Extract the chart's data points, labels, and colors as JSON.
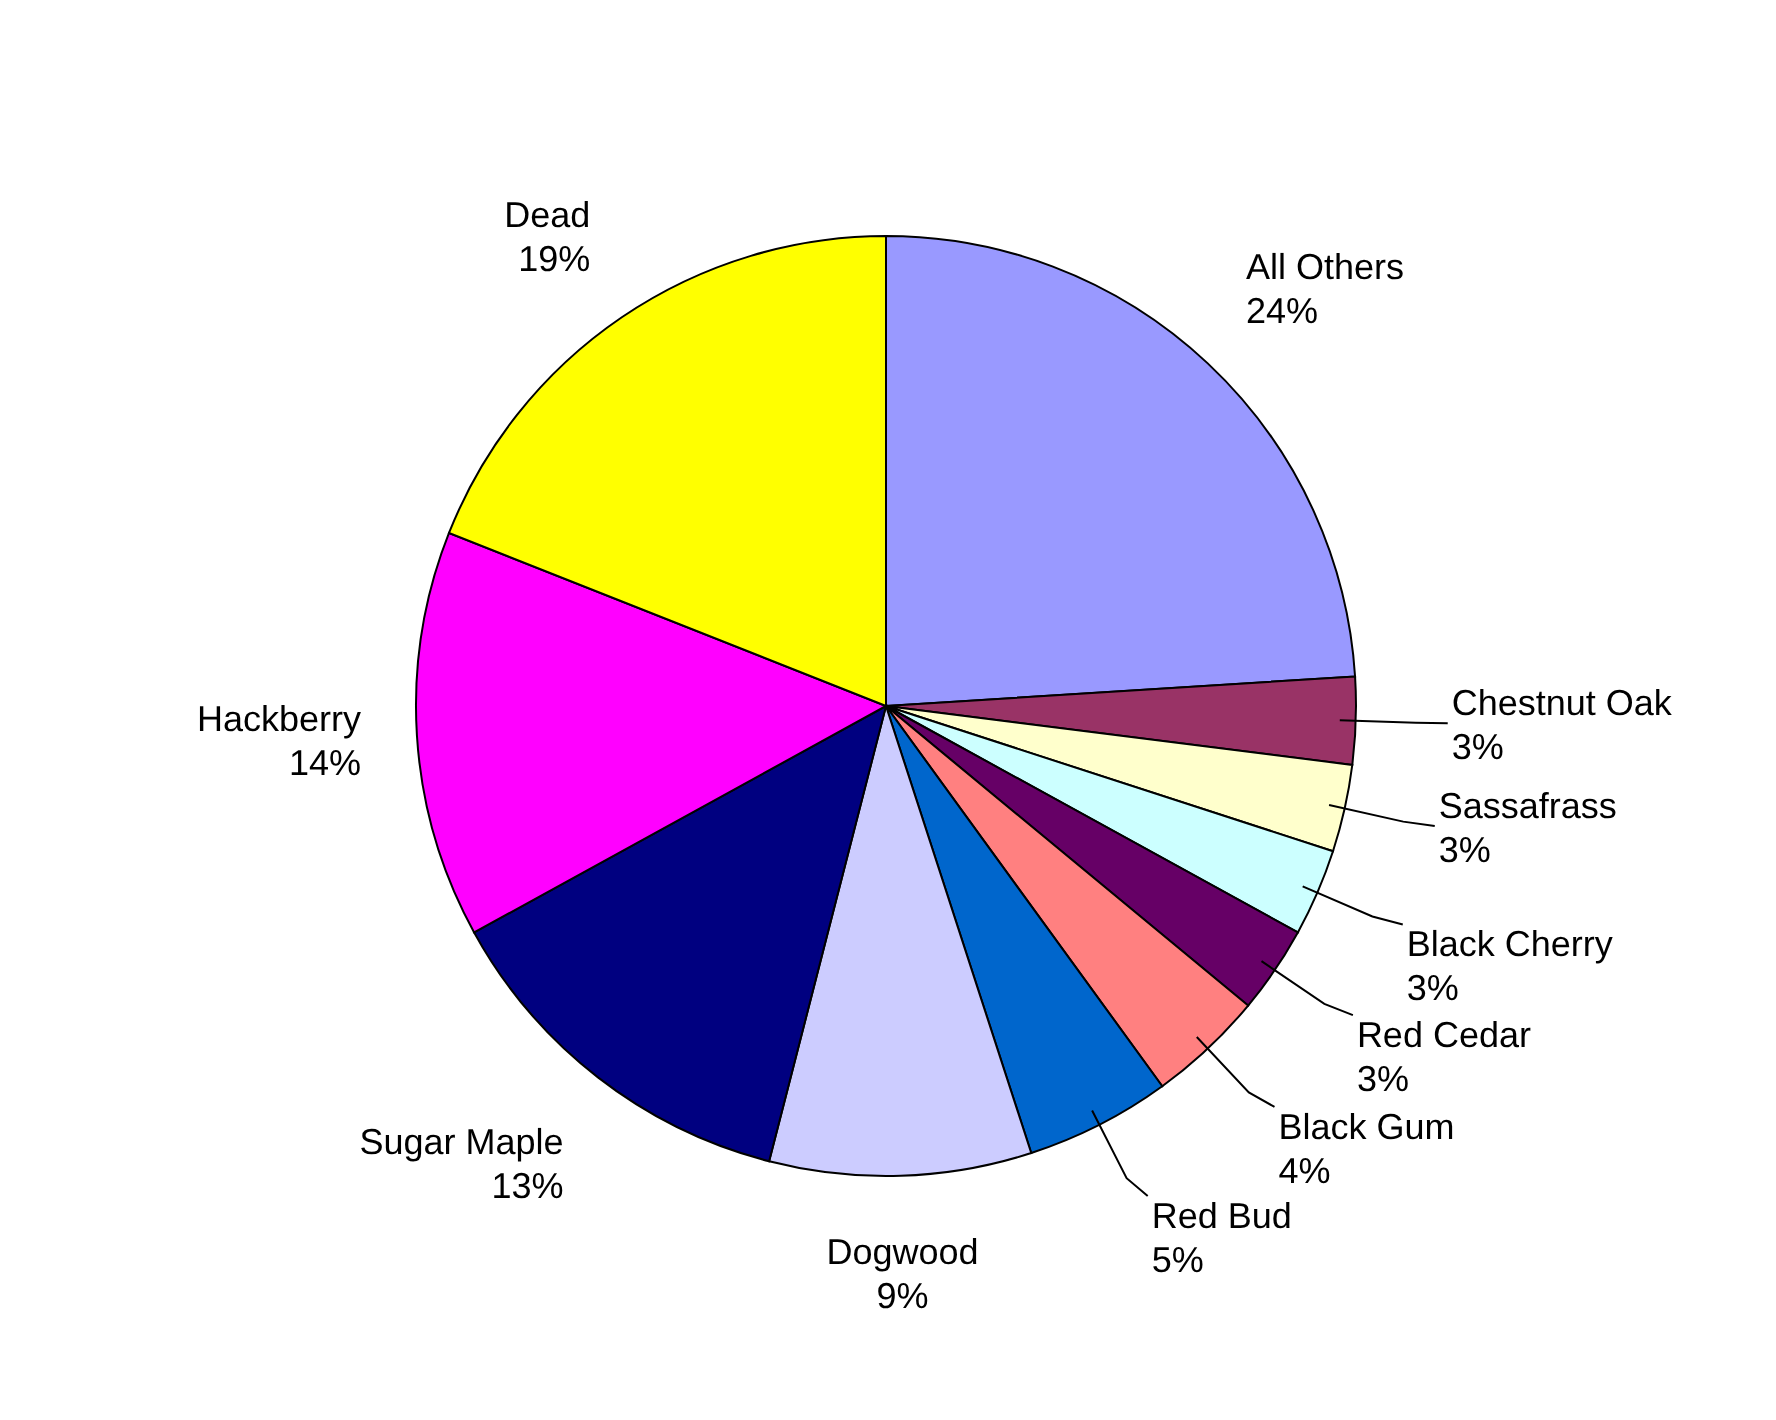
{
  "chart_data": {
    "type": "pie",
    "categories": [
      "All Others",
      "Chestnut Oak",
      "Sassafrass",
      "Black Cherry",
      "Red Cedar",
      "Black Gum",
      "Red Bud",
      "Dogwood",
      "Sugar Maple",
      "Hackberry",
      "Dead"
    ],
    "values": [
      24,
      3,
      3,
      3,
      3,
      4,
      5,
      9,
      13,
      14,
      19
    ],
    "value_labels": [
      "24%",
      "3%",
      "3%",
      "3%",
      "3%",
      "4%",
      "5%",
      "9%",
      "13%",
      "14%",
      "19%"
    ],
    "colors": [
      "#9999ff",
      "#993366",
      "#ffffcc",
      "#ccffff",
      "#660066",
      "#ff8080",
      "#0066cc",
      "#ccccff",
      "#000080",
      "#ff00ff",
      "#ffff00"
    ],
    "legend": false
  }
}
